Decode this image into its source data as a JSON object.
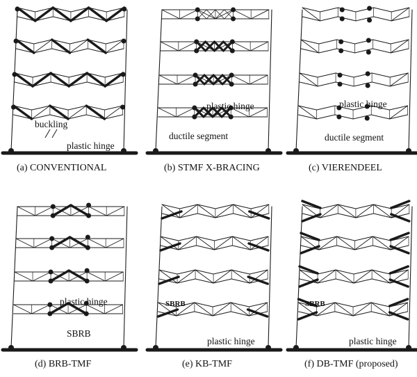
{
  "colors": {
    "line": "#1a1a1a",
    "background": "#ffffff"
  },
  "panels": [
    {
      "id": "a",
      "caption": "(a) CONVENTIONAL",
      "labels": {
        "buckling": "buckling",
        "hinge": "plastic hinge"
      }
    },
    {
      "id": "b",
      "caption": "(b) STMF X-BRACING",
      "labels": {
        "hinge": "plastic hinge",
        "ductile": "ductile segment"
      }
    },
    {
      "id": "c",
      "caption": "(c) VIERENDEEL",
      "labels": {
        "hinge": "plastic hinge",
        "ductile": "ductile segment"
      }
    },
    {
      "id": "d",
      "caption": "(d) BRB-TMF",
      "labels": {
        "hinge": "plastic hinge",
        "sbrb": "SBRB"
      }
    },
    {
      "id": "e",
      "caption": "(e) KB-TMF",
      "labels": {
        "sbrb": "SBRB",
        "hinge": "plastic hinge"
      }
    },
    {
      "id": "f",
      "caption": "(f) DB-TMF (proposed)",
      "labels": {
        "sbrb": "SBRB",
        "hinge": "plastic hinge"
      }
    }
  ]
}
